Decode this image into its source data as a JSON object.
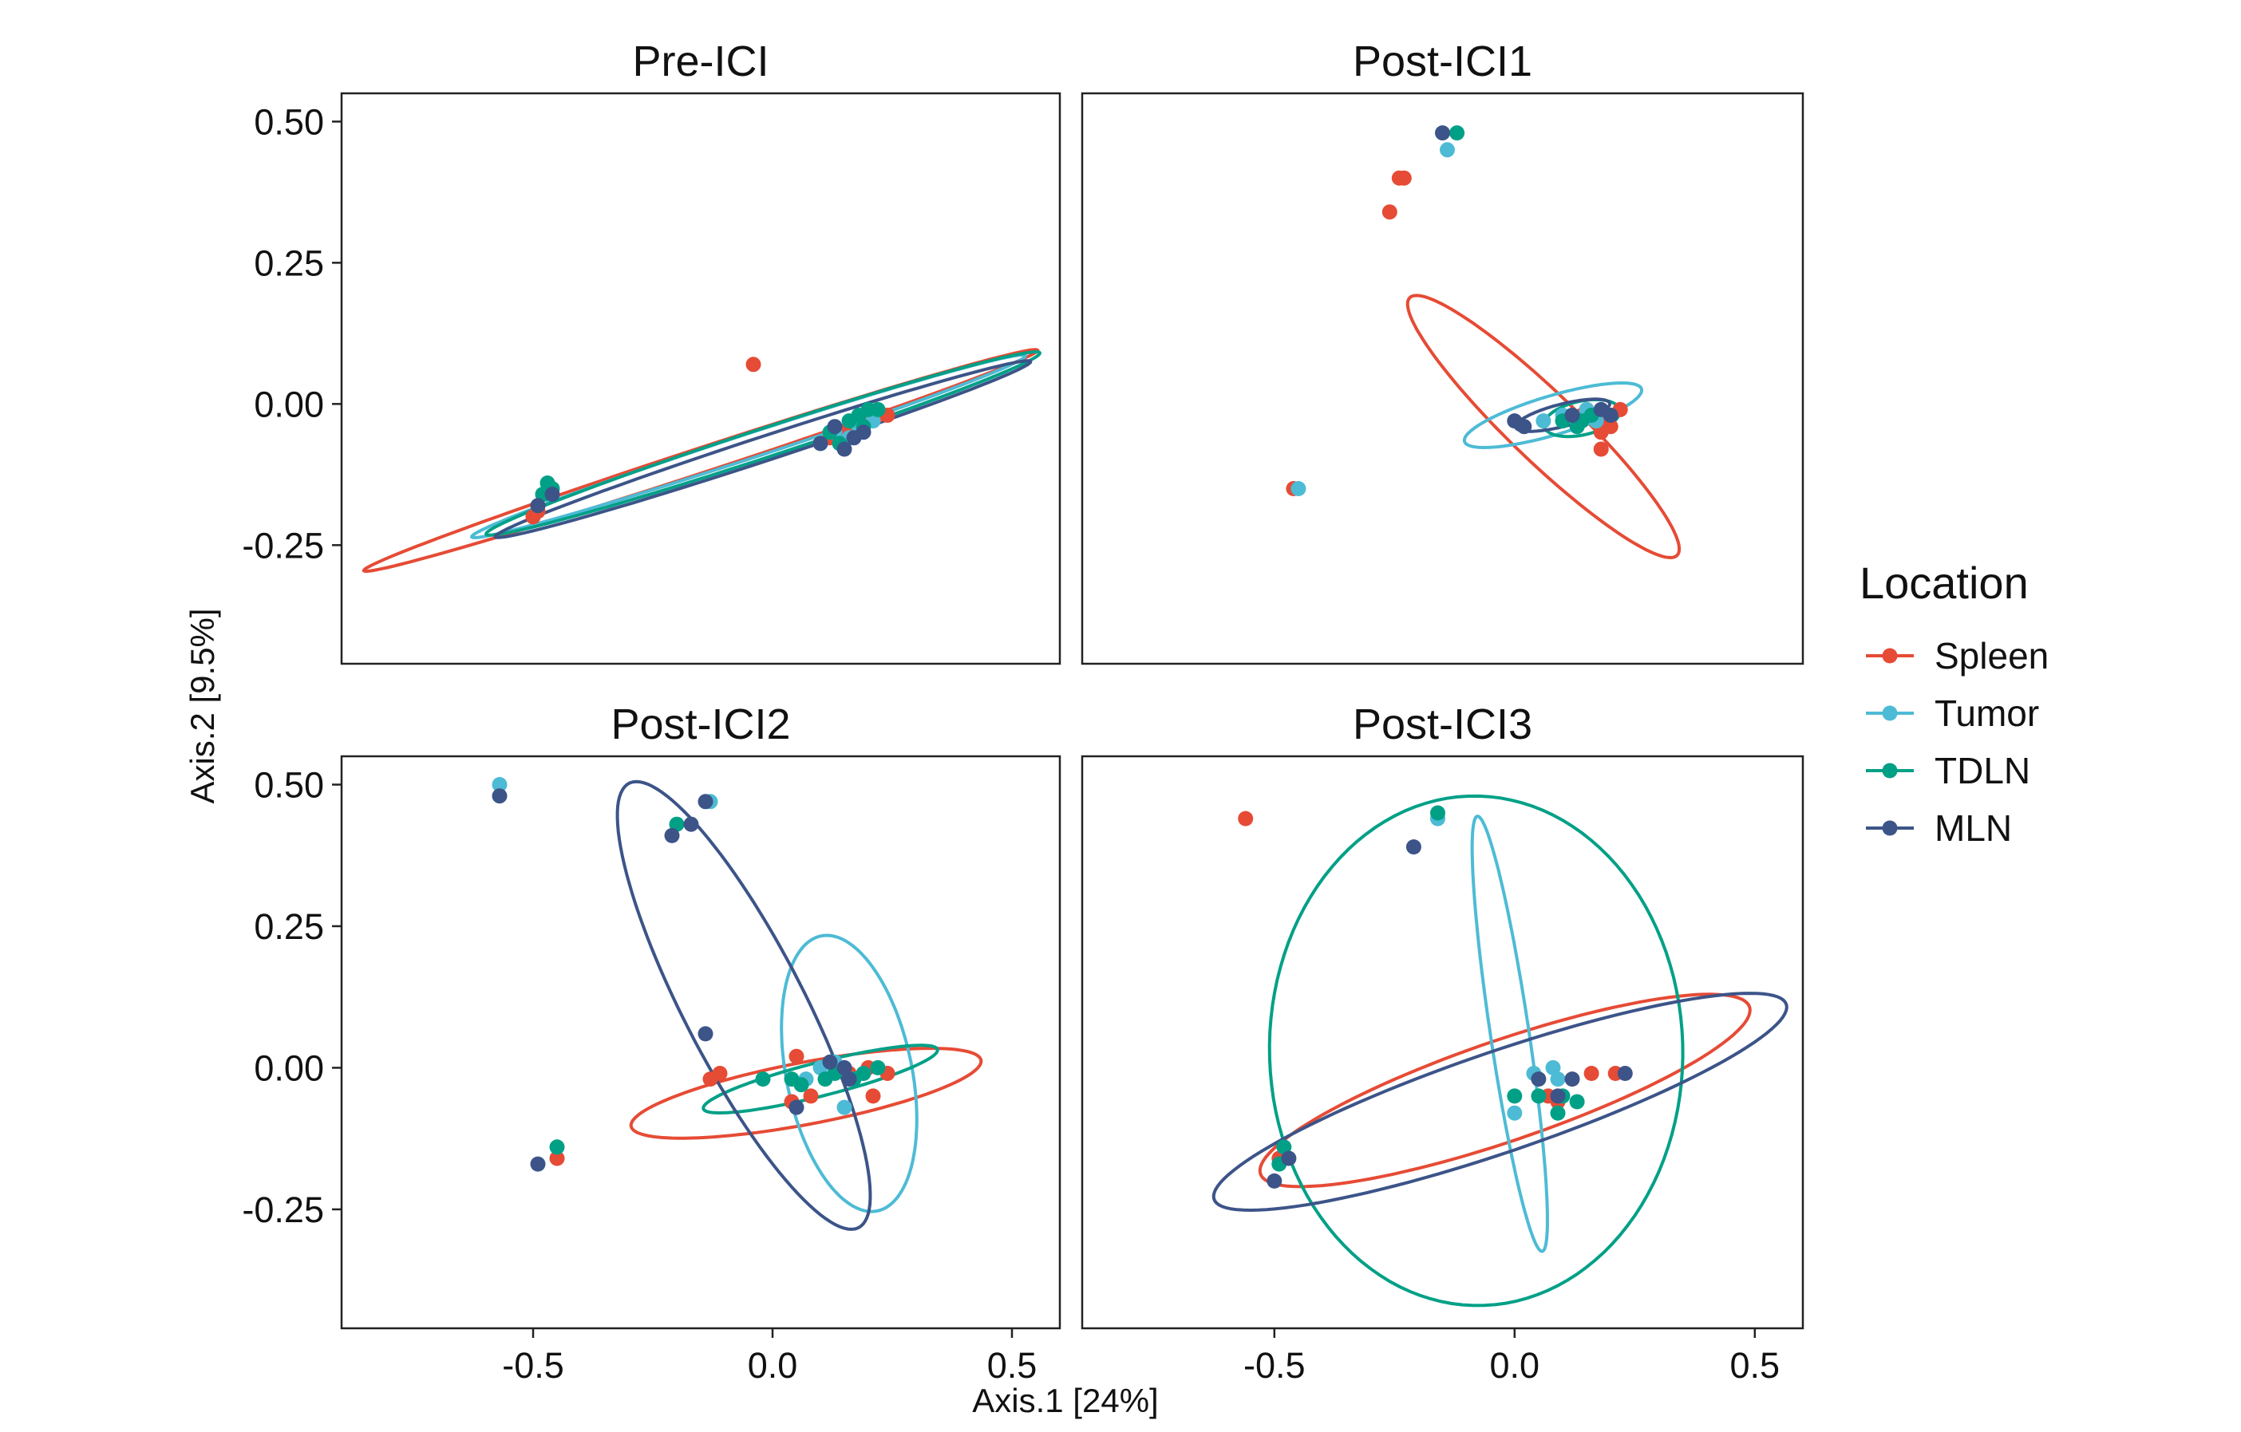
{
  "chart_data": {
    "type": "scatter",
    "xlabel": "Axis.1   [24%]",
    "ylabel": "Axis.2   [9.5%]",
    "xlim": [
      -0.9,
      0.6
    ],
    "ylim": [
      -0.46,
      0.55
    ],
    "xticks": [
      -0.5,
      0.0,
      0.5
    ],
    "xtick_labels": [
      "-0.5",
      "0.0",
      "0.5"
    ],
    "yticks": [
      0.5,
      0.25,
      0.0,
      -0.25
    ],
    "ytick_labels": [
      "0.50",
      "0.25",
      "0.00",
      "-0.25"
    ],
    "legend": {
      "title": "Location",
      "placement": "right",
      "entries": [
        {
          "name": "Spleen",
          "color": "#E64B35"
        },
        {
          "name": "Tumor",
          "color": "#4DBBD5"
        },
        {
          "name": "TDLN",
          "color": "#00A087"
        },
        {
          "name": "MLN",
          "color": "#3C5488"
        }
      ]
    },
    "panels": [
      {
        "title": "Pre-ICI",
        "series": [
          {
            "name": "Spleen",
            "points": [
              [
                -0.04,
                0.07
              ],
              [
                -0.5,
                -0.2
              ],
              [
                -0.49,
                -0.19
              ],
              [
                0.15,
                -0.05
              ],
              [
                0.2,
                -0.03
              ],
              [
                0.22,
                -0.02
              ],
              [
                0.24,
                -0.02
              ],
              [
                0.18,
                -0.04
              ],
              [
                0.12,
                -0.06
              ]
            ],
            "ellipse": {
              "center": [
                -0.15,
                -0.1
              ],
              "a": 0.73,
              "b": 0.022,
              "angle_deg": 15.5
            }
          },
          {
            "name": "Tumor",
            "points": [
              [
                0.13,
                -0.05
              ],
              [
                0.16,
                -0.06
              ],
              [
                0.1,
                -0.07
              ],
              [
                0.18,
                -0.04
              ],
              [
                0.21,
                -0.03
              ],
              [
                -0.47,
                -0.16
              ]
            ],
            "ellipse": {
              "center": [
                -0.05,
                -0.075
              ],
              "a": 0.6,
              "b": 0.022,
              "angle_deg": 15.5
            }
          },
          {
            "name": "TDLN",
            "points": [
              [
                -0.47,
                -0.14
              ],
              [
                -0.48,
                -0.16
              ],
              [
                -0.46,
                -0.15
              ],
              [
                0.2,
                -0.01
              ],
              [
                0.22,
                -0.01
              ],
              [
                0.18,
                -0.02
              ],
              [
                0.16,
                -0.03
              ],
              [
                0.12,
                -0.05
              ],
              [
                0.19,
                -0.04
              ],
              [
                0.14,
                -0.07
              ]
            ],
            "ellipse": {
              "center": [
                -0.02,
                -0.07
              ],
              "a": 0.6,
              "b": 0.026,
              "angle_deg": 15.5
            }
          },
          {
            "name": "MLN",
            "points": [
              [
                -0.49,
                -0.18
              ],
              [
                -0.46,
                -0.16
              ],
              [
                0.1,
                -0.07
              ],
              [
                0.15,
                -0.08
              ],
              [
                0.17,
                -0.06
              ],
              [
                0.19,
                -0.05
              ],
              [
                0.13,
                -0.04
              ]
            ],
            "ellipse": {
              "center": [
                -0.02,
                -0.08
              ],
              "a": 0.58,
              "b": 0.022,
              "angle_deg": 15.5
            }
          }
        ]
      },
      {
        "title": "Post-ICI1",
        "series": [
          {
            "name": "Spleen",
            "points": [
              [
                -0.24,
                0.4
              ],
              [
                -0.23,
                0.4
              ],
              [
                -0.26,
                0.34
              ],
              [
                -0.46,
                -0.15
              ],
              [
                0.15,
                -0.01
              ],
              [
                0.17,
                -0.02
              ],
              [
                0.19,
                -0.03
              ],
              [
                0.18,
                -0.05
              ],
              [
                0.2,
                -0.04
              ],
              [
                0.18,
                -0.08
              ],
              [
                0.22,
                -0.01
              ],
              [
                0.14,
                -0.02
              ]
            ],
            "ellipse": {
              "center": [
                0.06,
                -0.04
              ],
              "a": 0.36,
              "b": 0.065,
              "angle_deg": -39
            }
          },
          {
            "name": "Tumor",
            "points": [
              [
                -0.14,
                0.45
              ],
              [
                -0.45,
                -0.15
              ],
              [
                0.1,
                -0.02
              ],
              [
                0.13,
                -0.04
              ],
              [
                0.15,
                -0.01
              ],
              [
                0.06,
                -0.03
              ],
              [
                0.17,
                -0.03
              ]
            ],
            "ellipse": {
              "center": [
                0.08,
                -0.02
              ],
              "a": 0.19,
              "b": 0.035,
              "angle_deg": 14
            }
          },
          {
            "name": "TDLN",
            "points": [
              [
                -0.12,
                0.48
              ],
              [
                0.12,
                -0.02
              ],
              [
                0.14,
                -0.03
              ],
              [
                0.16,
                -0.02
              ],
              [
                0.13,
                -0.04
              ],
              [
                0.1,
                -0.03
              ]
            ],
            "ellipse": {
              "center": [
                0.14,
                -0.025
              ],
              "a": 0.08,
              "b": 0.03,
              "angle_deg": 10
            }
          },
          {
            "name": "MLN",
            "points": [
              [
                -0.15,
                0.48
              ],
              [
                0.0,
                -0.03
              ],
              [
                0.02,
                -0.04
              ],
              [
                0.12,
                -0.02
              ],
              [
                0.18,
                -0.01
              ],
              [
                0.2,
                -0.02
              ]
            ],
            "ellipse": {
              "center": [
                0.1,
                -0.02
              ],
              "a": 0.1,
              "b": 0.02,
              "angle_deg": 12
            }
          }
        ]
      },
      {
        "title": "Post-ICI2",
        "series": [
          {
            "name": "Spleen",
            "points": [
              [
                -0.45,
                -0.16
              ],
              [
                -0.13,
                -0.02
              ],
              [
                -0.11,
                -0.01
              ],
              [
                0.05,
                0.02
              ],
              [
                0.08,
                -0.05
              ],
              [
                0.16,
                -0.01
              ],
              [
                0.2,
                0.0
              ],
              [
                0.24,
                -0.01
              ],
              [
                0.21,
                -0.05
              ],
              [
                0.04,
                -0.06
              ]
            ],
            "ellipse": {
              "center": [
                0.07,
                -0.045
              ],
              "a": 0.37,
              "b": 0.055,
              "angle_deg": 9
            }
          },
          {
            "name": "Tumor",
            "points": [
              [
                -0.57,
                0.5
              ],
              [
                -0.13,
                0.47
              ],
              [
                0.1,
                0.0
              ],
              [
                0.13,
                0.01
              ],
              [
                0.15,
                -0.07
              ],
              [
                0.17,
                -0.02
              ],
              [
                0.07,
                -0.02
              ]
            ],
            "ellipse": {
              "center": [
                0.16,
                -0.01
              ],
              "a": 0.25,
              "b": 0.13,
              "angle_deg": -75
            }
          },
          {
            "name": "TDLN",
            "points": [
              [
                -0.2,
                0.43
              ],
              [
                -0.45,
                -0.14
              ],
              [
                0.04,
                -0.02
              ],
              [
                0.06,
                -0.03
              ],
              [
                0.11,
                -0.02
              ],
              [
                0.13,
                -0.01
              ],
              [
                0.17,
                -0.02
              ],
              [
                0.19,
                -0.01
              ],
              [
                0.22,
                0.0
              ],
              [
                -0.02,
                -0.02
              ]
            ],
            "ellipse": {
              "center": [
                0.1,
                -0.02
              ],
              "a": 0.25,
              "b": 0.03,
              "angle_deg": 12
            }
          },
          {
            "name": "MLN",
            "points": [
              [
                -0.57,
                0.48
              ],
              [
                -0.21,
                0.41
              ],
              [
                -0.17,
                0.43
              ],
              [
                -0.14,
                0.47
              ],
              [
                -0.14,
                0.06
              ],
              [
                -0.49,
                -0.17
              ],
              [
                0.15,
                0.0
              ],
              [
                0.12,
                0.01
              ],
              [
                0.16,
                -0.02
              ],
              [
                0.05,
                -0.07
              ]
            ],
            "ellipse": {
              "center": [
                -0.06,
                0.11
              ],
              "a": 0.46,
              "b": 0.12,
              "angle_deg": -58
            }
          }
        ]
      },
      {
        "title": "Post-ICI3",
        "series": [
          {
            "name": "Spleen",
            "points": [
              [
                -0.56,
                0.44
              ],
              [
                -0.49,
                -0.16
              ],
              [
                0.16,
                -0.01
              ],
              [
                0.21,
                -0.01
              ],
              [
                0.09,
                -0.06
              ],
              [
                0.07,
                -0.05
              ]
            ],
            "ellipse": {
              "center": [
                -0.02,
                -0.04
              ],
              "a": 0.53,
              "b": 0.09,
              "angle_deg": 16
            }
          },
          {
            "name": "Tumor",
            "points": [
              [
                -0.16,
                0.44
              ],
              [
                0.04,
                -0.01
              ],
              [
                0.08,
                0.0
              ],
              [
                0.09,
                -0.02
              ],
              [
                0.0,
                -0.08
              ]
            ],
            "ellipse": {
              "center": [
                -0.01,
                0.06
              ],
              "a": 0.39,
              "b": 0.04,
              "angle_deg": -80
            }
          },
          {
            "name": "TDLN",
            "points": [
              [
                -0.16,
                0.45
              ],
              [
                -0.48,
                -0.14
              ],
              [
                -0.49,
                -0.17
              ],
              [
                0.0,
                -0.05
              ],
              [
                0.05,
                -0.05
              ],
              [
                0.09,
                -0.08
              ],
              [
                0.13,
                -0.06
              ],
              [
                0.1,
                -0.05
              ]
            ],
            "ellipse": {
              "center": [
                -0.08,
                0.03
              ],
              "a": 0.45,
              "b": 0.43,
              "angle_deg": -85
            }
          },
          {
            "name": "MLN",
            "points": [
              [
                -0.21,
                0.39
              ],
              [
                -0.5,
                -0.2
              ],
              [
                -0.47,
                -0.16
              ],
              [
                0.05,
                -0.02
              ],
              [
                0.12,
                -0.02
              ],
              [
                0.23,
                -0.01
              ],
              [
                0.09,
                -0.05
              ]
            ],
            "ellipse": {
              "center": [
                -0.03,
                -0.06
              ],
              "a": 0.62,
              "b": 0.09,
              "angle_deg": 16
            }
          }
        ]
      }
    ]
  }
}
